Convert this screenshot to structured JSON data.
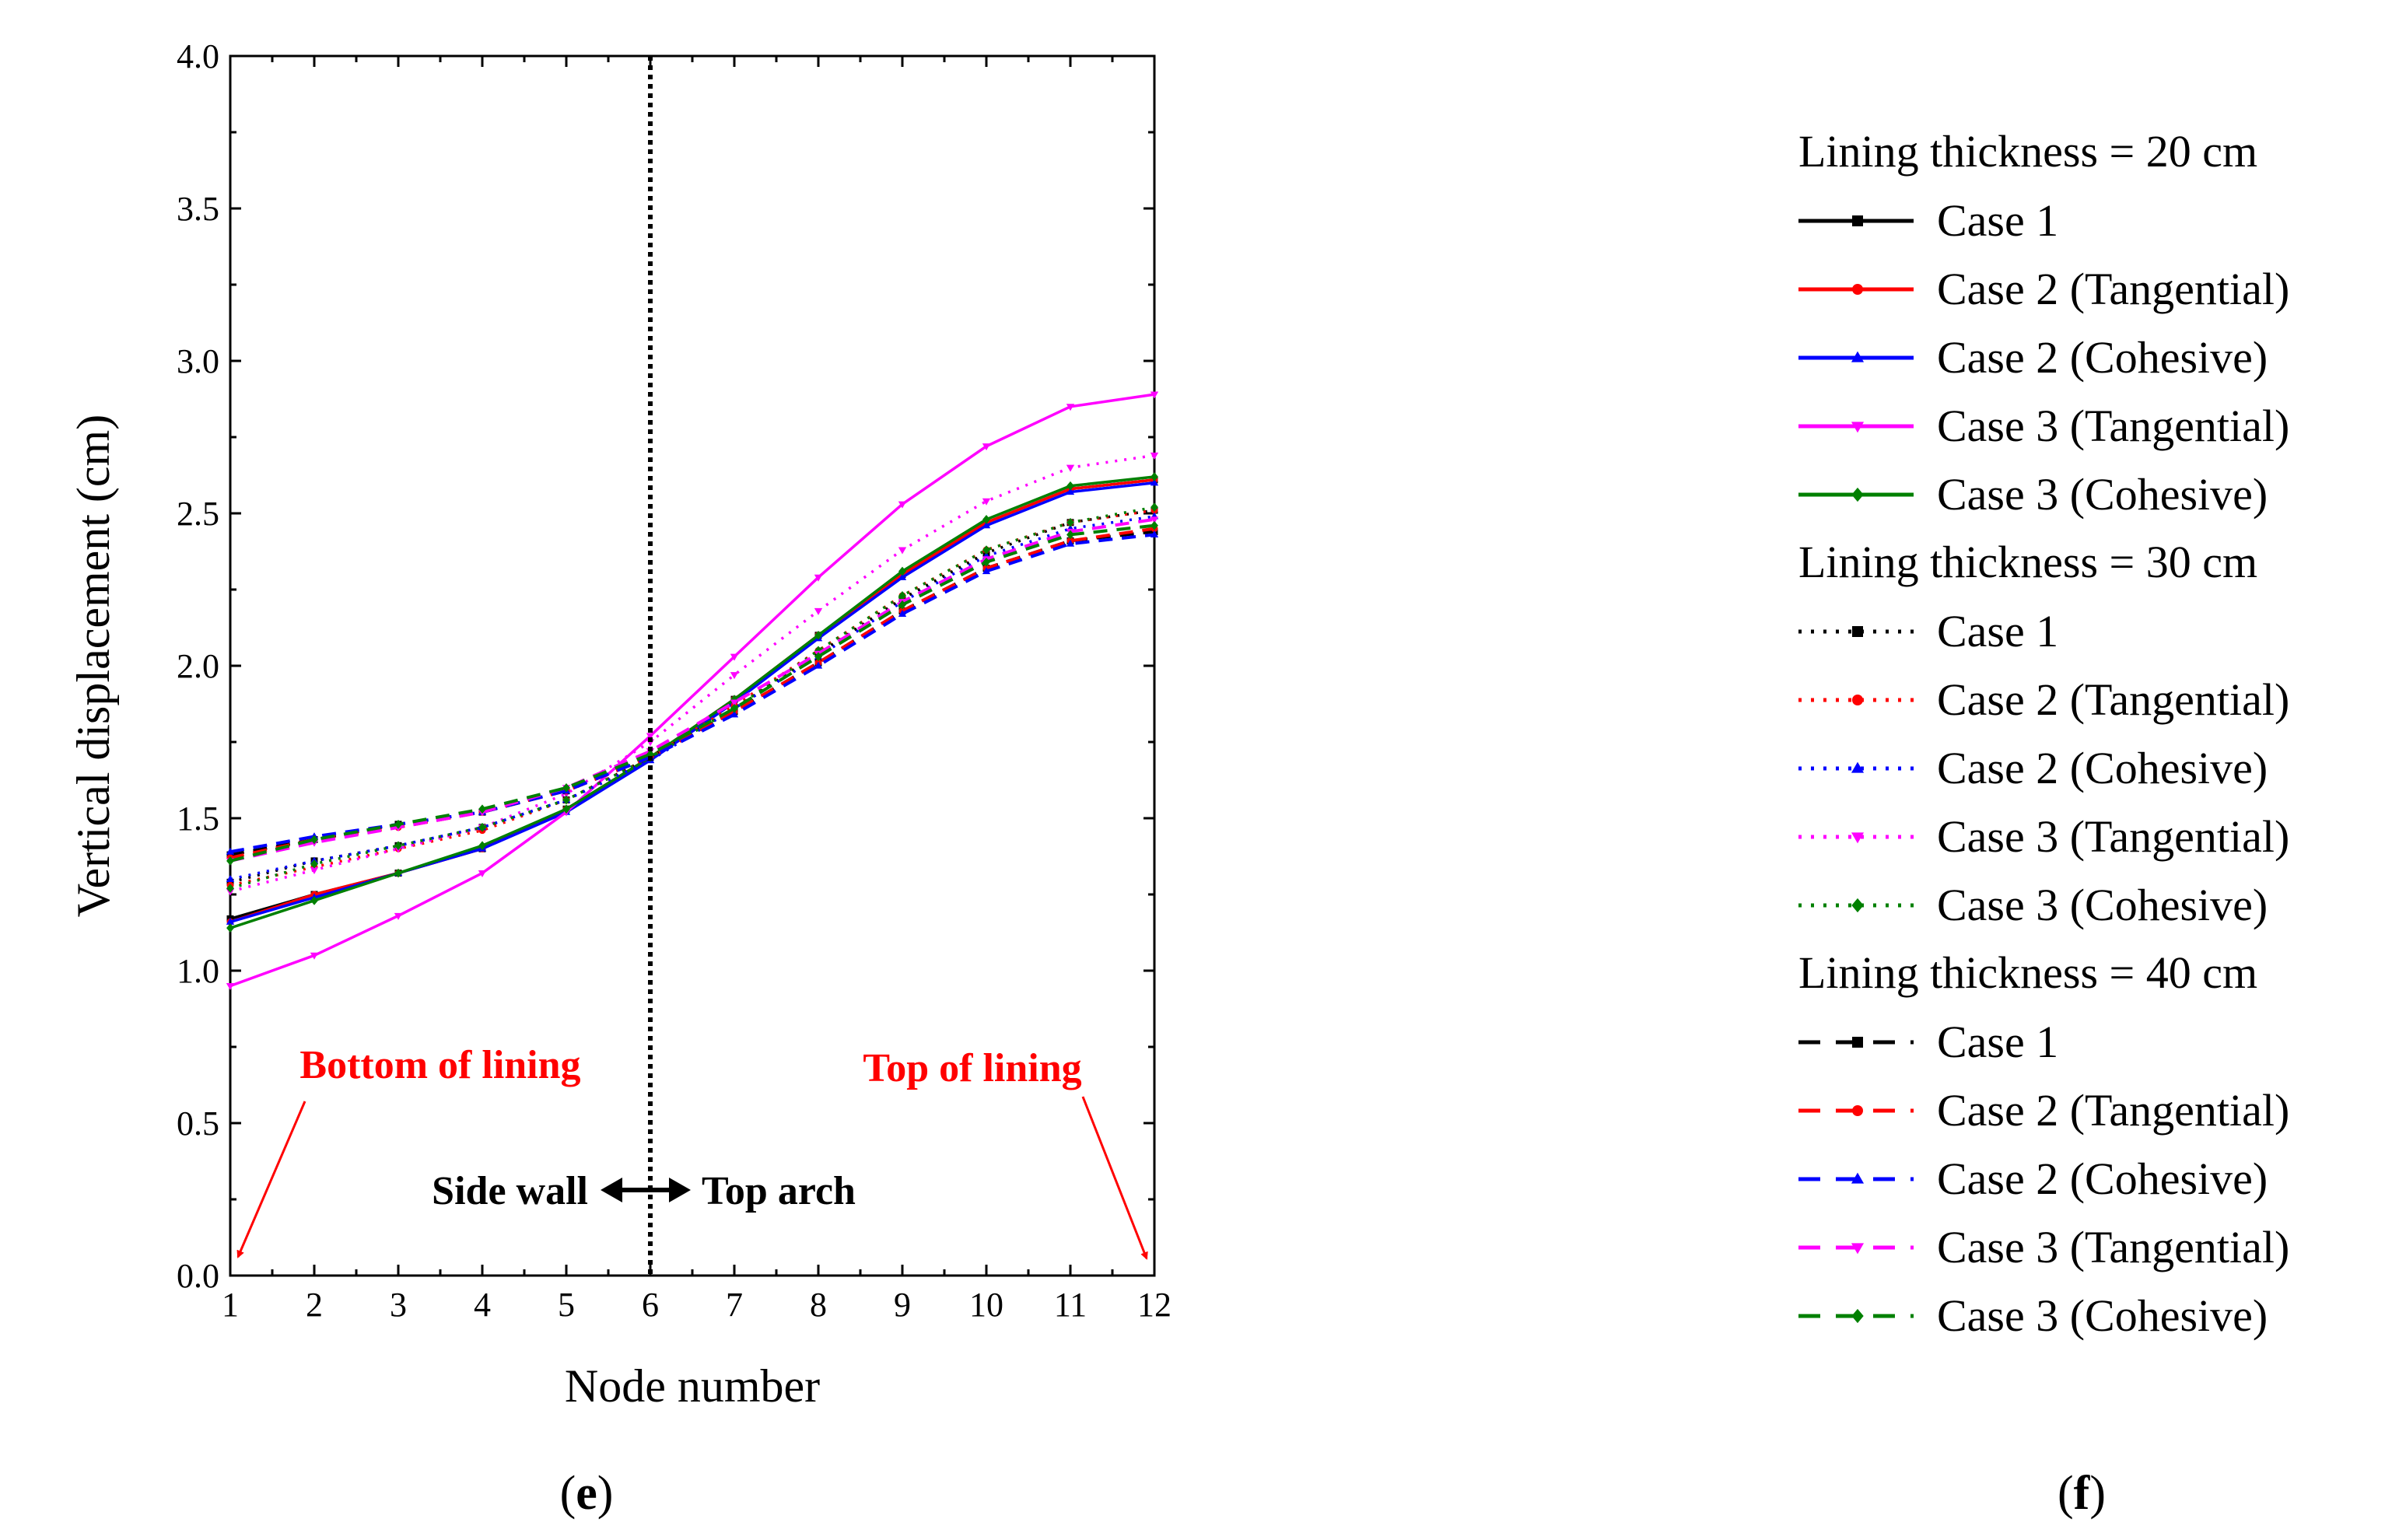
{
  "chart_data": {
    "type": "line",
    "xlabel": "Node number",
    "ylabel": "Vertical displacement (cm)",
    "xlim": [
      1,
      12
    ],
    "ylim": [
      0.0,
      4.0
    ],
    "x": [
      1,
      2,
      3,
      4,
      5,
      6,
      7,
      8,
      9,
      10,
      11,
      12
    ],
    "xticks": [
      "1",
      "2",
      "3",
      "4",
      "5",
      "6",
      "7",
      "8",
      "9",
      "10",
      "11",
      "12"
    ],
    "yticks": [
      "0.0",
      "0.5",
      "1.0",
      "1.5",
      "2.0",
      "2.5",
      "3.0",
      "3.5",
      "4.0"
    ],
    "divider_x": 6,
    "annotations": {
      "bottom": "Bottom of lining",
      "top": "Top of lining",
      "side_wall": "Side wall",
      "top_arch": "Top arch"
    },
    "colors": {
      "case1": "#000000",
      "case2_tangential": "#ff0000",
      "case2_cohesive": "#0000ff",
      "case3_tangential": "#ff00ff",
      "case3_cohesive": "#008000",
      "annotation": "#ff0000"
    },
    "legend_groups": [
      {
        "title": "Lining thickness = 20 cm",
        "line_style": "solid",
        "series": [
          {
            "name": "Case 1",
            "color": "#000000",
            "marker": "square",
            "values": [
              1.17,
              1.25,
              1.32,
              1.4,
              1.53,
              1.7,
              1.89,
              2.1,
              2.3,
              2.47,
              2.58,
              2.61
            ]
          },
          {
            "name": "Case 2 (Tangential)",
            "color": "#ff0000",
            "marker": "circle",
            "values": [
              1.16,
              1.25,
              1.32,
              1.4,
              1.53,
              1.7,
              1.89,
              2.1,
              2.3,
              2.47,
              2.58,
              2.61
            ]
          },
          {
            "name": "Case 2 (Cohesive)",
            "color": "#0000ff",
            "marker": "triangle-up",
            "values": [
              1.16,
              1.24,
              1.32,
              1.4,
              1.52,
              1.69,
              1.88,
              2.09,
              2.29,
              2.46,
              2.57,
              2.6
            ]
          },
          {
            "name": "Case 3 (Tangential)",
            "color": "#ff00ff",
            "marker": "triangle-down",
            "values": [
              0.95,
              1.05,
              1.18,
              1.32,
              1.52,
              1.77,
              2.03,
              2.29,
              2.53,
              2.72,
              2.85,
              2.89
            ]
          },
          {
            "name": "Case 3 (Cohesive)",
            "color": "#008000",
            "marker": "diamond",
            "values": [
              1.14,
              1.23,
              1.32,
              1.41,
              1.53,
              1.7,
              1.89,
              2.1,
              2.31,
              2.48,
              2.59,
              2.62
            ]
          }
        ]
      },
      {
        "title": "Lining thickness = 30 cm",
        "line_style": "dotted",
        "series": [
          {
            "name": "Case 1",
            "color": "#000000",
            "marker": "square",
            "values": [
              1.29,
              1.36,
              1.41,
              1.47,
              1.56,
              1.7,
              1.86,
              2.04,
              2.22,
              2.37,
              2.47,
              2.51
            ]
          },
          {
            "name": "Case 2 (Tangential)",
            "color": "#ff0000",
            "marker": "circle",
            "values": [
              1.28,
              1.34,
              1.4,
              1.46,
              1.56,
              1.7,
              1.87,
              2.05,
              2.23,
              2.38,
              2.47,
              2.51
            ]
          },
          {
            "name": "Case 2 (Cohesive)",
            "color": "#0000ff",
            "marker": "triangle-up",
            "values": [
              1.3,
              1.36,
              1.41,
              1.47,
              1.56,
              1.69,
              1.86,
              2.03,
              2.21,
              2.36,
              2.45,
              2.49
            ]
          },
          {
            "name": "Case 3 (Tangential)",
            "color": "#ff00ff",
            "marker": "triangle-down",
            "values": [
              1.26,
              1.33,
              1.4,
              1.47,
              1.58,
              1.75,
              1.97,
              2.18,
              2.38,
              2.54,
              2.65,
              2.69
            ]
          },
          {
            "name": "Case 3 (Cohesive)",
            "color": "#008000",
            "marker": "diamond",
            "values": [
              1.27,
              1.35,
              1.41,
              1.47,
              1.56,
              1.7,
              1.86,
              2.05,
              2.23,
              2.38,
              2.47,
              2.52
            ]
          }
        ]
      },
      {
        "title": "Lining thickness = 40 cm",
        "line_style": "dashed",
        "series": [
          {
            "name": "Case 1",
            "color": "#000000",
            "marker": "square",
            "values": [
              1.38,
              1.43,
              1.48,
              1.52,
              1.59,
              1.7,
              1.85,
              2.01,
              2.18,
              2.32,
              2.41,
              2.44
            ]
          },
          {
            "name": "Case 2 (Tangential)",
            "color": "#ff0000",
            "marker": "circle",
            "values": [
              1.37,
              1.43,
              1.47,
              1.52,
              1.59,
              1.7,
              1.85,
              2.01,
              2.18,
              2.32,
              2.41,
              2.45
            ]
          },
          {
            "name": "Case 2 (Cohesive)",
            "color": "#0000ff",
            "marker": "triangle-up",
            "values": [
              1.39,
              1.44,
              1.48,
              1.52,
              1.59,
              1.7,
              1.84,
              2.0,
              2.17,
              2.31,
              2.4,
              2.43
            ]
          },
          {
            "name": "Case 3 (Tangential)",
            "color": "#ff00ff",
            "marker": "triangle-down",
            "values": [
              1.36,
              1.42,
              1.47,
              1.52,
              1.6,
              1.72,
              1.88,
              2.04,
              2.21,
              2.35,
              2.44,
              2.48
            ]
          },
          {
            "name": "Case 3 (Cohesive)",
            "color": "#008000",
            "marker": "diamond",
            "values": [
              1.36,
              1.43,
              1.48,
              1.53,
              1.6,
              1.71,
              1.86,
              2.03,
              2.2,
              2.34,
              2.43,
              2.46
            ]
          }
        ]
      }
    ]
  },
  "panel_labels": {
    "left_open": "(",
    "left": "e",
    "left_close": ")",
    "right_open": "(",
    "right": "f",
    "right_close": ")"
  }
}
